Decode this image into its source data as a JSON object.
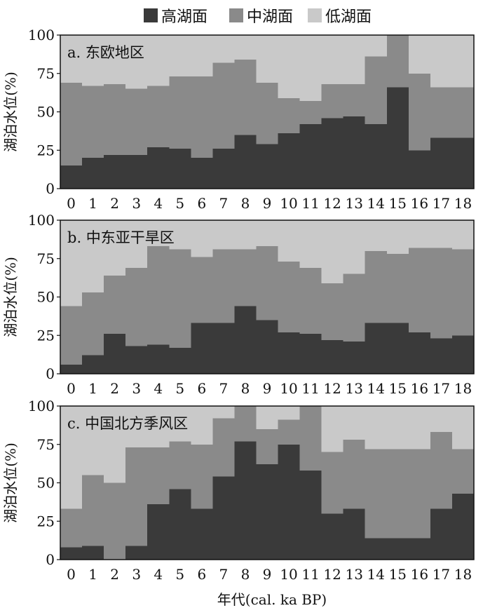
{
  "legend": {
    "items": [
      {
        "label": "高湖面",
        "color": "#3a3a3a"
      },
      {
        "label": "中湖面",
        "color": "#8a8a8a"
      },
      {
        "label": "低湖面",
        "color": "#c9c9c9"
      }
    ]
  },
  "xlabel": "年代(cal. ka BP)",
  "ylabel": "湖泊水位(%)",
  "chart_data": [
    {
      "type": "area",
      "subtype": "stacked-step",
      "title": "a. 东欧地区",
      "xlabel": "年代(cal. ka BP)",
      "ylabel": "湖泊水位(%)",
      "x": [
        0,
        1,
        2,
        3,
        4,
        5,
        6,
        7,
        8,
        9,
        10,
        11,
        12,
        13,
        14,
        15,
        16,
        17,
        18
      ],
      "ylim": [
        0,
        100
      ],
      "yticks": [
        0,
        25,
        50,
        75,
        100
      ],
      "series": [
        {
          "name": "高湖面",
          "values": [
            15,
            20,
            22,
            22,
            27,
            26,
            20,
            26,
            35,
            29,
            36,
            42,
            46,
            47,
            42,
            66,
            25,
            33,
            33
          ]
        },
        {
          "name": "中湖面",
          "values": [
            54,
            47,
            46,
            43,
            40,
            47,
            53,
            56,
            49,
            40,
            23,
            15,
            22,
            21,
            44,
            34,
            50,
            33,
            33
          ]
        },
        {
          "name": "低湖面",
          "values": [
            31,
            33,
            32,
            35,
            33,
            27,
            27,
            18,
            16,
            31,
            41,
            43,
            32,
            32,
            14,
            0,
            25,
            34,
            34
          ]
        }
      ]
    },
    {
      "type": "area",
      "subtype": "stacked-step",
      "title": "b. 中东亚干旱区",
      "xlabel": "年代(cal. ka BP)",
      "ylabel": "湖泊水位(%)",
      "x": [
        0,
        1,
        2,
        3,
        4,
        5,
        6,
        7,
        8,
        9,
        10,
        11,
        12,
        13,
        14,
        15,
        16,
        17,
        18
      ],
      "ylim": [
        0,
        100
      ],
      "yticks": [
        0,
        25,
        50,
        75,
        100
      ],
      "series": [
        {
          "name": "高湖面",
          "values": [
            6,
            12,
            26,
            18,
            19,
            17,
            33,
            33,
            44,
            35,
            27,
            26,
            22,
            21,
            33,
            33,
            27,
            23,
            25
          ]
        },
        {
          "name": "中湖面",
          "values": [
            38,
            41,
            38,
            51,
            64,
            64,
            43,
            48,
            37,
            48,
            46,
            43,
            37,
            44,
            47,
            45,
            55,
            59,
            56
          ]
        },
        {
          "name": "低湖面",
          "values": [
            56,
            47,
            36,
            31,
            17,
            19,
            24,
            19,
            19,
            17,
            27,
            31,
            41,
            35,
            20,
            22,
            18,
            18,
            19
          ]
        }
      ]
    },
    {
      "type": "area",
      "subtype": "stacked-step",
      "title": "c. 中国北方季风区",
      "xlabel": "年代(cal. ka BP)",
      "ylabel": "湖泊水位(%)",
      "x": [
        0,
        1,
        2,
        3,
        4,
        5,
        6,
        7,
        8,
        9,
        10,
        11,
        12,
        13,
        14,
        15,
        16,
        17,
        18
      ],
      "ylim": [
        0,
        100
      ],
      "yticks": [
        0,
        25,
        50,
        75,
        100
      ],
      "series": [
        {
          "name": "高湖面",
          "values": [
            8,
            9,
            0,
            9,
            36,
            46,
            33,
            54,
            77,
            62,
            75,
            58,
            30,
            33,
            14,
            14,
            14,
            33,
            43
          ]
        },
        {
          "name": "中湖面",
          "values": [
            25,
            46,
            50,
            64,
            37,
            31,
            42,
            38,
            23,
            23,
            16,
            42,
            40,
            45,
            58,
            58,
            58,
            50,
            29
          ]
        },
        {
          "name": "低湖面",
          "values": [
            67,
            45,
            50,
            27,
            27,
            23,
            25,
            8,
            0,
            15,
            9,
            0,
            30,
            22,
            28,
            28,
            28,
            17,
            28
          ]
        }
      ]
    }
  ]
}
